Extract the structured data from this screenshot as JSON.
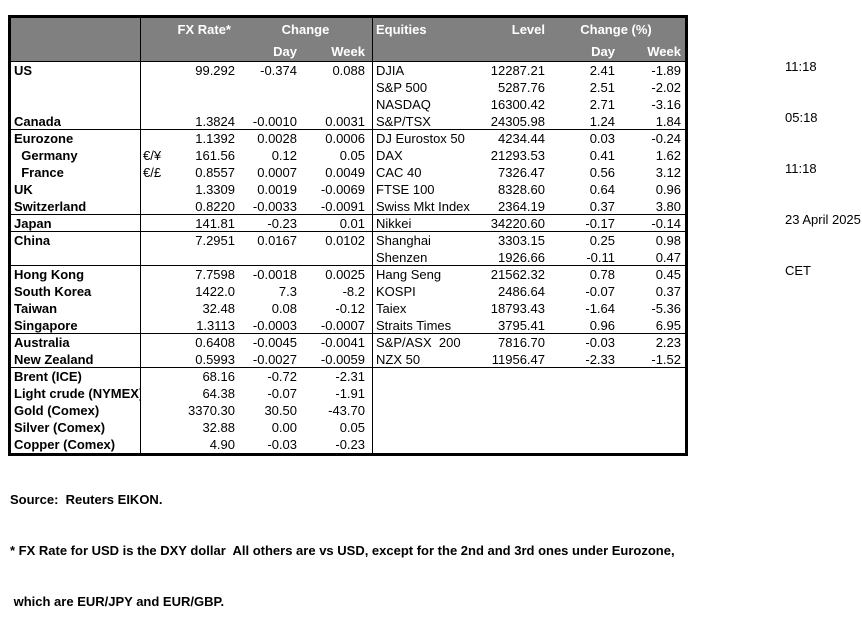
{
  "colors": {
    "header_bg": "#808080",
    "header_text": "#ffffff",
    "border": "#000000"
  },
  "header": {
    "fx_rate": "FX Rate*",
    "change": "Change",
    "day": "Day",
    "week": "Week",
    "equities": "Equities",
    "level": "Level",
    "change_pct": "Change (%)",
    "eq_day": "Day",
    "eq_week": "Week"
  },
  "table": {
    "rows": [
      {
        "label": "US",
        "pair": "",
        "rate": "99.292",
        "day": "-0.374",
        "week": "0.088",
        "eq_name": "DJIA",
        "eq_level": "12287.21",
        "eq_day": "2.41",
        "eq_week": "-1.89",
        "sep": false
      },
      {
        "label": "",
        "pair": "",
        "rate": "",
        "day": "",
        "week": "",
        "eq_name": "S&P 500",
        "eq_level": "5287.76",
        "eq_day": "2.51",
        "eq_week": "-2.02",
        "sep": false
      },
      {
        "label": "",
        "pair": "",
        "rate": "",
        "day": "",
        "week": "",
        "eq_name": "NASDAQ",
        "eq_level": "16300.42",
        "eq_day": "2.71",
        "eq_week": "-3.16",
        "sep": false
      },
      {
        "label": "Canada",
        "pair": "",
        "rate": "1.3824",
        "day": "-0.0010",
        "week": "0.0031",
        "eq_name": "S&P/TSX",
        "eq_level": "24305.98",
        "eq_day": "1.24",
        "eq_week": "1.84",
        "sep": true
      },
      {
        "label": "Eurozone",
        "pair": "",
        "rate": "1.1392",
        "day": "0.0028",
        "week": "0.0006",
        "eq_name": "DJ Eurostox 50",
        "eq_level": "4234.44",
        "eq_day": "0.03",
        "eq_week": "-0.24",
        "sep": false
      },
      {
        "label": "  Germany",
        "pair": "€/¥",
        "rate": "161.56",
        "day": "0.12",
        "week": "0.05",
        "eq_name": "DAX",
        "eq_level": "21293.53",
        "eq_day": "0.41",
        "eq_week": "1.62",
        "sep": false
      },
      {
        "label": "  France",
        "pair": "€/£",
        "rate": "0.8557",
        "day": "0.0007",
        "week": "0.0049",
        "eq_name": "CAC 40",
        "eq_level": "7326.47",
        "eq_day": "0.56",
        "eq_week": "3.12",
        "sep": false
      },
      {
        "label": "UK",
        "pair": "",
        "rate": "1.3309",
        "day": "0.0019",
        "week": "-0.0069",
        "eq_name": "FTSE 100",
        "eq_level": "8328.60",
        "eq_day": "0.64",
        "eq_week": "0.96",
        "sep": false
      },
      {
        "label": "Switzerland",
        "pair": "",
        "rate": "0.8220",
        "day": "-0.0033",
        "week": "-0.0091",
        "eq_name": "Swiss Mkt Index",
        "eq_level": "2364.19",
        "eq_day": "0.37",
        "eq_week": "3.80",
        "sep": true
      },
      {
        "label": "Japan",
        "pair": "",
        "rate": "141.81",
        "day": "-0.23",
        "week": "0.01",
        "eq_name": "Nikkei",
        "eq_level": "34220.60",
        "eq_day": "-0.17",
        "eq_week": "-0.14",
        "sep": true
      },
      {
        "label": "China",
        "pair": "",
        "rate": "7.2951",
        "day": "0.0167",
        "week": "0.0102",
        "eq_name": "Shanghai",
        "eq_level": "3303.15",
        "eq_day": "0.25",
        "eq_week": "0.98",
        "sep": false
      },
      {
        "label": "",
        "pair": "",
        "rate": "",
        "day": "",
        "week": "",
        "eq_name": "Shenzen",
        "eq_level": "1926.66",
        "eq_day": "-0.11",
        "eq_week": "0.47",
        "sep": true
      },
      {
        "label": "Hong Kong",
        "pair": "",
        "rate": "7.7598",
        "day": "-0.0018",
        "week": "0.0025",
        "eq_name": "Hang Seng",
        "eq_level": "21562.32",
        "eq_day": "0.78",
        "eq_week": "0.45",
        "sep": false
      },
      {
        "label": "South Korea",
        "pair": "",
        "rate": "1422.0",
        "day": "7.3",
        "week": "-8.2",
        "eq_name": "KOSPI",
        "eq_level": "2486.64",
        "eq_day": "-0.07",
        "eq_week": "0.37",
        "sep": false
      },
      {
        "label": "Taiwan",
        "pair": "",
        "rate": "32.48",
        "day": "0.08",
        "week": "-0.12",
        "eq_name": "Taiex",
        "eq_level": "18793.43",
        "eq_day": "-1.64",
        "eq_week": "-5.36",
        "sep": false
      },
      {
        "label": "Singapore",
        "pair": "",
        "rate": "1.3113",
        "day": "-0.0003",
        "week": "-0.0007",
        "eq_name": "Straits Times",
        "eq_level": "3795.41",
        "eq_day": "0.96",
        "eq_week": "6.95",
        "sep": true
      },
      {
        "label": "Australia",
        "pair": "",
        "rate": "0.6408",
        "day": "-0.0045",
        "week": "-0.0041",
        "eq_name": "S&P/ASX  200",
        "eq_level": "7816.70",
        "eq_day": "-0.03",
        "eq_week": "2.23",
        "sep": false
      },
      {
        "label": "New Zealand",
        "pair": "",
        "rate": "0.5993",
        "day": "-0.0027",
        "week": "-0.0059",
        "eq_name": "NZX 50",
        "eq_level": "11956.47",
        "eq_day": "-2.33",
        "eq_week": "-1.52",
        "sep": true
      },
      {
        "label": "Brent (ICE)",
        "pair": "",
        "rate": "68.16",
        "day": "-0.72",
        "week": "-2.31",
        "eq_name": "",
        "eq_level": "",
        "eq_day": "",
        "eq_week": "",
        "sep": false
      },
      {
        "label": "Light crude (NYMEX)",
        "pair": "",
        "rate": "64.38",
        "day": "-0.07",
        "week": "-1.91",
        "eq_name": "",
        "eq_level": "",
        "eq_day": "",
        "eq_week": "",
        "sep": false
      },
      {
        "label": "Gold (Comex)",
        "pair": "",
        "rate": "3370.30",
        "day": "30.50",
        "week": "-43.70",
        "eq_name": "",
        "eq_level": "",
        "eq_day": "",
        "eq_week": "",
        "sep": false
      },
      {
        "label": "Silver (Comex)",
        "pair": "",
        "rate": "32.88",
        "day": "0.00",
        "week": "0.05",
        "eq_name": "",
        "eq_level": "",
        "eq_day": "",
        "eq_week": "",
        "sep": false
      },
      {
        "label": "Copper (Comex)",
        "pair": "",
        "rate": "4.90",
        "day": "-0.03",
        "week": "-0.23",
        "eq_name": "",
        "eq_level": "",
        "eq_day": "",
        "eq_week": "",
        "sep": false
      }
    ]
  },
  "timestamps": [
    "11:18",
    "05:18",
    "11:18",
    "23 April 2025",
    "CET"
  ],
  "footnotes": [
    "Source:  Reuters EIKON.",
    "* FX Rate for USD is the DXY dollar  All others are vs USD, except for the 2nd and 3rd ones under Eurozone,",
    " which are EUR/JPY and EUR/GBP."
  ]
}
